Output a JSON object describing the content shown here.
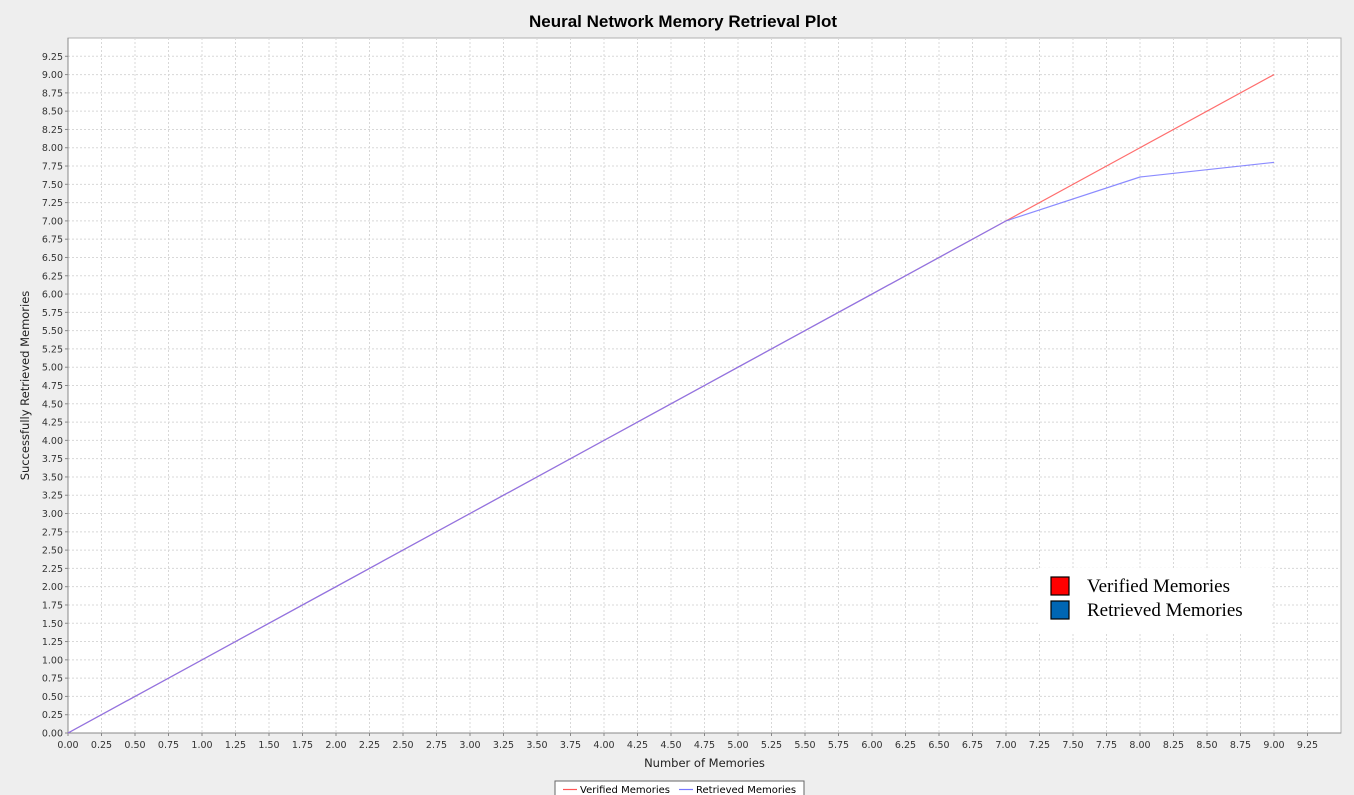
{
  "chart_data": {
    "type": "line",
    "title": "Neural Network Memory Retrieval Plot",
    "xlabel": "Number of Memories",
    "ylabel": "Successfully Retrieved Memories",
    "xlim": [
      0,
      9.5
    ],
    "ylim": [
      0,
      9.5
    ],
    "tick_step": 0.25,
    "x_ticks": [
      "0.00",
      "0.25",
      "0.50",
      "0.75",
      "1.00",
      "1.25",
      "1.50",
      "1.75",
      "2.00",
      "2.25",
      "2.50",
      "2.75",
      "3.00",
      "3.25",
      "3.50",
      "3.75",
      "4.00",
      "4.25",
      "4.50",
      "4.75",
      "5.00",
      "5.25",
      "5.50",
      "5.75",
      "6.00",
      "6.25",
      "6.50",
      "6.75",
      "7.00",
      "7.25",
      "7.50",
      "7.75",
      "8.00",
      "8.25",
      "8.50",
      "8.75",
      "9.00",
      "9.25"
    ],
    "y_ticks": [
      "0.00",
      "0.25",
      "0.50",
      "0.75",
      "1.00",
      "1.25",
      "1.50",
      "1.75",
      "2.00",
      "2.25",
      "2.50",
      "2.75",
      "3.00",
      "3.25",
      "3.50",
      "3.75",
      "4.00",
      "4.25",
      "4.50",
      "4.75",
      "5.00",
      "5.25",
      "5.50",
      "5.75",
      "6.00",
      "6.25",
      "6.50",
      "6.75",
      "7.00",
      "7.25",
      "7.50",
      "7.75",
      "8.00",
      "8.25",
      "8.50",
      "8.75",
      "9.00",
      "9.25"
    ],
    "grid": true,
    "series": [
      {
        "name": "Verified Memories",
        "color": "#ff5555",
        "x": [
          0,
          1,
          2,
          3,
          4,
          5,
          6,
          7,
          8,
          9
        ],
        "y": [
          0,
          1,
          2,
          3,
          4,
          5,
          6,
          7,
          8,
          9
        ]
      },
      {
        "name": "Retrieved Memories",
        "color": "#7777ff",
        "x": [
          0,
          1,
          2,
          3,
          4,
          5,
          6,
          7,
          8,
          9
        ],
        "y": [
          0,
          1,
          2,
          3,
          4,
          5,
          6,
          7,
          7.6,
          7.8
        ]
      }
    ],
    "legend": {
      "position": "bottom-center",
      "entries": [
        "Verified Memories",
        "Retrieved Memories"
      ]
    },
    "inset_legend": {
      "position": "lower-right",
      "entries": [
        {
          "label": "Verified Memories",
          "color": "#ff0000"
        },
        {
          "label": "Retrieved Memories",
          "color": "#0066b3"
        }
      ]
    },
    "colors": {
      "background": "#eeeeee",
      "plot_background": "#ffffff",
      "grid": "#d8d8d8"
    }
  }
}
